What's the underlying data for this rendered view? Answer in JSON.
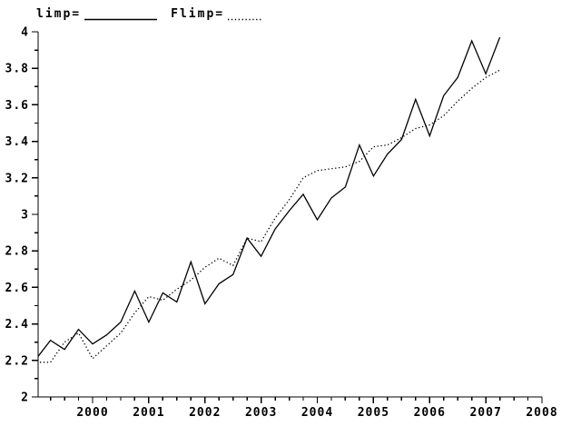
{
  "legend": {
    "items": [
      {
        "label": "limp=",
        "line_style": "solid"
      },
      {
        "label": "Flimp=",
        "line_style": "dotted"
      }
    ]
  },
  "colors": {
    "foreground": "#000000",
    "background": "#ffffff"
  },
  "chart_data": {
    "type": "line",
    "title": "",
    "xlabel": "",
    "ylabel": "",
    "grid": false,
    "legend_position": "top-left",
    "xlim": [
      1999.03,
      2008
    ],
    "ylim": [
      2,
      4
    ],
    "x_major_ticks": [
      2000,
      2001,
      2002,
      2003,
      2004,
      2005,
      2006,
      2007,
      2008
    ],
    "x_tick_labels": [
      "2000",
      "2001",
      "2002",
      "2003",
      "2004",
      "2005",
      "2006",
      "2007",
      "2008"
    ],
    "x_minor_step": 0.25,
    "y_major_ticks": [
      2,
      2.2,
      2.4,
      2.6,
      2.8,
      3,
      3.2,
      3.4,
      3.6,
      3.8,
      4
    ],
    "y_tick_labels": [
      "2",
      "2.2",
      "2.4",
      "2.6",
      "2.8",
      "3",
      "3.2",
      "3.4",
      "3.6",
      "3.8",
      "4"
    ],
    "y_minor_step": 0.1,
    "x": [
      1999.0,
      1999.25,
      1999.5,
      1999.75,
      2000.0,
      2000.25,
      2000.5,
      2000.75,
      2001.0,
      2001.25,
      2001.5,
      2001.75,
      2002.0,
      2002.25,
      2002.5,
      2002.75,
      2003.0,
      2003.25,
      2003.5,
      2003.75,
      2004.0,
      2004.25,
      2004.5,
      2004.75,
      2005.0,
      2005.25,
      2005.5,
      2005.75,
      2006.0,
      2006.25,
      2006.5,
      2006.75,
      2007.0,
      2007.25
    ],
    "series": [
      {
        "name": "limp",
        "style": "solid",
        "values": [
          2.21,
          2.31,
          2.26,
          2.37,
          2.29,
          2.34,
          2.41,
          2.58,
          2.41,
          2.57,
          2.52,
          2.74,
          2.51,
          2.62,
          2.67,
          2.87,
          2.77,
          2.92,
          3.02,
          3.11,
          2.97,
          3.09,
          3.15,
          3.38,
          3.21,
          3.33,
          3.41,
          3.63,
          3.43,
          3.65,
          3.75,
          3.95,
          3.77,
          3.97
        ]
      },
      {
        "name": "Flimp",
        "style": "dotted",
        "values": [
          2.19,
          2.19,
          2.3,
          2.35,
          2.21,
          2.28,
          2.35,
          2.46,
          2.55,
          2.53,
          2.59,
          2.64,
          2.71,
          2.76,
          2.72,
          2.87,
          2.85,
          2.98,
          3.08,
          3.2,
          3.24,
          3.25,
          3.26,
          3.29,
          3.37,
          3.38,
          3.42,
          3.47,
          3.49,
          3.54,
          3.62,
          3.69,
          3.75,
          3.79
        ]
      }
    ]
  }
}
